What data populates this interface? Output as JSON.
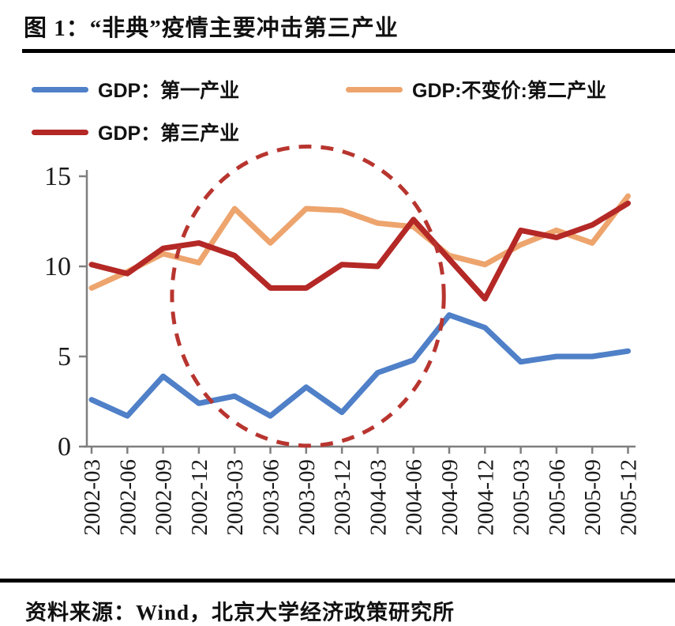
{
  "page": {
    "title": "图 1：“非典”疫情主要冲击第三产业",
    "source": "资料来源：Wind，北京大学经济政策研究所"
  },
  "chart_data": {
    "type": "line",
    "title": "图 1：“非典”疫情主要冲击第三产业",
    "categories": [
      "2002-03",
      "2002-06",
      "2002-09",
      "2002-12",
      "2003-03",
      "2003-06",
      "2003-09",
      "2003-12",
      "2004-03",
      "2004-06",
      "2004-09",
      "2004-12",
      "2005-03",
      "2005-06",
      "2005-09",
      "2005-12"
    ],
    "series": [
      {
        "name": "GDP：第一产业",
        "color": "#4f80c8",
        "values": [
          2.6,
          1.7,
          3.9,
          2.4,
          2.8,
          1.7,
          3.3,
          1.9,
          4.1,
          4.8,
          7.3,
          6.6,
          4.7,
          5.0,
          5.0,
          5.3
        ]
      },
      {
        "name": "GDP:不变价:第二产业",
        "color": "#eda46d",
        "values": [
          8.8,
          9.7,
          10.7,
          10.2,
          13.2,
          11.3,
          13.2,
          13.1,
          12.4,
          12.2,
          10.6,
          10.1,
          11.2,
          12.0,
          11.3,
          13.9
        ]
      },
      {
        "name": "GDP：第三产业",
        "color": "#b42826",
        "values": [
          10.1,
          9.6,
          11.0,
          11.3,
          10.6,
          8.8,
          8.8,
          10.1,
          10.0,
          12.6,
          10.4,
          8.2,
          12.0,
          11.6,
          12.3,
          13.5
        ]
      }
    ],
    "ylim": [
      0,
      15
    ],
    "yticks": [
      0,
      5,
      10,
      15
    ],
    "xlabel": "",
    "ylabel": "",
    "grid": false,
    "legend_position": "top-left",
    "annotation_ellipse": {
      "style": "dashed",
      "color": "#b8352f",
      "center_category_index": 6.05,
      "center_value": 8.35,
      "radius_categories": 3.8,
      "radius_value": 8.3
    }
  },
  "colors": {
    "axis": "#7f7f7f",
    "tick_text": "#1a1a1a"
  }
}
